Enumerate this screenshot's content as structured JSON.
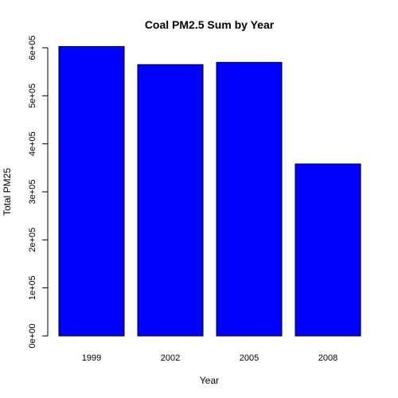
{
  "chart_data": {
    "type": "bar",
    "title": "Coal PM2.5 Sum by Year",
    "xlabel": "Year",
    "ylabel": "Total PM25",
    "categories": [
      "1999",
      "2002",
      "2005",
      "2008"
    ],
    "values": [
      602624,
      564940,
      569654,
      358083
    ],
    "ylim": [
      0,
      600000
    ],
    "yticks": [
      0,
      100000,
      200000,
      300000,
      400000,
      500000,
      600000
    ],
    "ytick_labels": [
      "0e+00",
      "1e+05",
      "2e+05",
      "3e+05",
      "4e+05",
      "5e+05",
      "6e+05"
    ],
    "bar_color": "#0000FF",
    "bar_border_color": "#000000",
    "grid": false,
    "legend": "none"
  }
}
